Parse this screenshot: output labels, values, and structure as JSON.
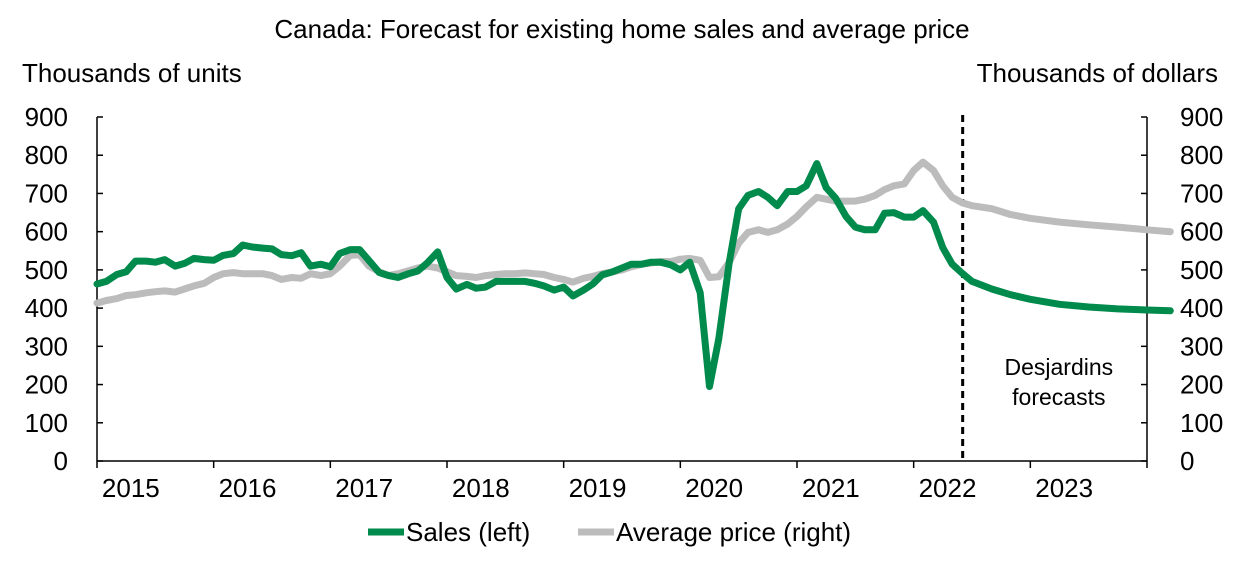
{
  "chart_data": {
    "type": "line",
    "title": "Canada: Forecast for existing home sales and average price",
    "ylabel_left": "Thousands of units",
    "ylabel_right": "Thousands of dollars",
    "yaxis_left": {
      "min": 0,
      "max": 900,
      "ticks": [
        0,
        100,
        200,
        300,
        400,
        500,
        600,
        700,
        800,
        900
      ]
    },
    "yaxis_right": {
      "min": 0,
      "max": 900,
      "ticks": [
        0,
        100,
        200,
        300,
        400,
        500,
        600,
        700,
        800,
        900
      ]
    },
    "xaxis": {
      "min": 2015,
      "max": 2024,
      "ticks": [
        2015,
        2016,
        2017,
        2018,
        2019,
        2020,
        2021,
        2022,
        2023
      ]
    },
    "forecast_start": 2022.42,
    "annotation": [
      "Desjardins",
      "forecasts"
    ],
    "series": [
      {
        "name": "Sales (left)",
        "axis": "left",
        "color": "#008a4c",
        "points": [
          [
            2015.0,
            463
          ],
          [
            2015.08,
            470
          ],
          [
            2015.17,
            488
          ],
          [
            2015.25,
            495
          ],
          [
            2015.33,
            523
          ],
          [
            2015.42,
            523
          ],
          [
            2015.5,
            520
          ],
          [
            2015.58,
            527
          ],
          [
            2015.67,
            510
          ],
          [
            2015.75,
            517
          ],
          [
            2015.83,
            530
          ],
          [
            2015.92,
            527
          ],
          [
            2016.0,
            525
          ],
          [
            2016.08,
            538
          ],
          [
            2016.17,
            543
          ],
          [
            2016.25,
            565
          ],
          [
            2016.33,
            560
          ],
          [
            2016.42,
            557
          ],
          [
            2016.5,
            555
          ],
          [
            2016.58,
            540
          ],
          [
            2016.67,
            537
          ],
          [
            2016.75,
            545
          ],
          [
            2016.83,
            510
          ],
          [
            2016.92,
            515
          ],
          [
            2017.0,
            508
          ],
          [
            2017.08,
            543
          ],
          [
            2017.17,
            553
          ],
          [
            2017.25,
            553
          ],
          [
            2017.33,
            525
          ],
          [
            2017.42,
            493
          ],
          [
            2017.5,
            485
          ],
          [
            2017.58,
            480
          ],
          [
            2017.67,
            490
          ],
          [
            2017.75,
            497
          ],
          [
            2017.83,
            518
          ],
          [
            2017.92,
            547
          ],
          [
            2018.0,
            480
          ],
          [
            2018.08,
            450
          ],
          [
            2018.17,
            462
          ],
          [
            2018.25,
            452
          ],
          [
            2018.33,
            455
          ],
          [
            2018.42,
            470
          ],
          [
            2018.5,
            470
          ],
          [
            2018.58,
            470
          ],
          [
            2018.67,
            470
          ],
          [
            2018.75,
            465
          ],
          [
            2018.83,
            458
          ],
          [
            2018.92,
            447
          ],
          [
            2019.0,
            455
          ],
          [
            2019.08,
            432
          ],
          [
            2019.17,
            447
          ],
          [
            2019.25,
            463
          ],
          [
            2019.33,
            487
          ],
          [
            2019.42,
            495
          ],
          [
            2019.5,
            505
          ],
          [
            2019.58,
            515
          ],
          [
            2019.67,
            515
          ],
          [
            2019.75,
            520
          ],
          [
            2019.83,
            520
          ],
          [
            2019.92,
            513
          ],
          [
            2020.0,
            500
          ],
          [
            2020.08,
            520
          ],
          [
            2020.17,
            440
          ],
          [
            2020.25,
            195
          ],
          [
            2020.33,
            320
          ],
          [
            2020.42,
            520
          ],
          [
            2020.5,
            660
          ],
          [
            2020.58,
            695
          ],
          [
            2020.67,
            705
          ],
          [
            2020.75,
            690
          ],
          [
            2020.83,
            668
          ],
          [
            2020.92,
            705
          ],
          [
            2021.0,
            705
          ],
          [
            2021.08,
            720
          ],
          [
            2021.17,
            778
          ],
          [
            2021.25,
            715
          ],
          [
            2021.33,
            688
          ],
          [
            2021.42,
            640
          ],
          [
            2021.5,
            612
          ],
          [
            2021.58,
            605
          ],
          [
            2021.67,
            605
          ],
          [
            2021.75,
            648
          ],
          [
            2021.83,
            650
          ],
          [
            2021.92,
            638
          ],
          [
            2022.0,
            638
          ],
          [
            2022.08,
            655
          ],
          [
            2022.17,
            625
          ],
          [
            2022.25,
            558
          ],
          [
            2022.33,
            515
          ],
          [
            2022.42,
            490
          ],
          [
            2022.5,
            470
          ],
          [
            2022.67,
            450
          ],
          [
            2022.83,
            435
          ],
          [
            2023.0,
            423
          ],
          [
            2023.25,
            410
          ],
          [
            2023.5,
            403
          ],
          [
            2023.75,
            398
          ],
          [
            2024.0,
            395
          ],
          [
            2024.2,
            393
          ]
        ]
      },
      {
        "name": "Average price (right)",
        "axis": "right",
        "color": "#bcbcbc",
        "points": [
          [
            2015.0,
            413
          ],
          [
            2015.08,
            420
          ],
          [
            2015.17,
            425
          ],
          [
            2015.25,
            433
          ],
          [
            2015.33,
            435
          ],
          [
            2015.42,
            440
          ],
          [
            2015.5,
            443
          ],
          [
            2015.58,
            445
          ],
          [
            2015.67,
            442
          ],
          [
            2015.75,
            450
          ],
          [
            2015.83,
            458
          ],
          [
            2015.92,
            465
          ],
          [
            2016.0,
            480
          ],
          [
            2016.08,
            490
          ],
          [
            2016.17,
            493
          ],
          [
            2016.25,
            490
          ],
          [
            2016.33,
            490
          ],
          [
            2016.42,
            490
          ],
          [
            2016.5,
            485
          ],
          [
            2016.58,
            475
          ],
          [
            2016.67,
            480
          ],
          [
            2016.75,
            478
          ],
          [
            2016.83,
            490
          ],
          [
            2016.92,
            485
          ],
          [
            2017.0,
            490
          ],
          [
            2017.08,
            510
          ],
          [
            2017.17,
            538
          ],
          [
            2017.25,
            540
          ],
          [
            2017.33,
            510
          ],
          [
            2017.42,
            495
          ],
          [
            2017.5,
            485
          ],
          [
            2017.58,
            490
          ],
          [
            2017.67,
            498
          ],
          [
            2017.75,
            505
          ],
          [
            2017.83,
            510
          ],
          [
            2017.92,
            505
          ],
          [
            2018.0,
            495
          ],
          [
            2018.08,
            485
          ],
          [
            2018.17,
            483
          ],
          [
            2018.25,
            480
          ],
          [
            2018.33,
            485
          ],
          [
            2018.42,
            488
          ],
          [
            2018.5,
            490
          ],
          [
            2018.58,
            490
          ],
          [
            2018.67,
            492
          ],
          [
            2018.75,
            490
          ],
          [
            2018.83,
            488
          ],
          [
            2018.92,
            480
          ],
          [
            2019.0,
            475
          ],
          [
            2019.08,
            468
          ],
          [
            2019.17,
            478
          ],
          [
            2019.25,
            483
          ],
          [
            2019.33,
            490
          ],
          [
            2019.42,
            495
          ],
          [
            2019.5,
            500
          ],
          [
            2019.58,
            508
          ],
          [
            2019.67,
            515
          ],
          [
            2019.75,
            518
          ],
          [
            2019.83,
            522
          ],
          [
            2019.92,
            522
          ],
          [
            2020.0,
            528
          ],
          [
            2020.08,
            530
          ],
          [
            2020.17,
            525
          ],
          [
            2020.25,
            480
          ],
          [
            2020.33,
            482
          ],
          [
            2020.42,
            520
          ],
          [
            2020.5,
            570
          ],
          [
            2020.58,
            598
          ],
          [
            2020.67,
            605
          ],
          [
            2020.75,
            598
          ],
          [
            2020.83,
            605
          ],
          [
            2020.92,
            620
          ],
          [
            2021.0,
            640
          ],
          [
            2021.08,
            665
          ],
          [
            2021.17,
            690
          ],
          [
            2021.25,
            685
          ],
          [
            2021.33,
            680
          ],
          [
            2021.42,
            680
          ],
          [
            2021.5,
            680
          ],
          [
            2021.58,
            685
          ],
          [
            2021.67,
            695
          ],
          [
            2021.75,
            710
          ],
          [
            2021.83,
            720
          ],
          [
            2021.92,
            725
          ],
          [
            2022.0,
            760
          ],
          [
            2022.08,
            782
          ],
          [
            2022.17,
            760
          ],
          [
            2022.25,
            720
          ],
          [
            2022.33,
            690
          ],
          [
            2022.42,
            675
          ],
          [
            2022.5,
            668
          ],
          [
            2022.67,
            660
          ],
          [
            2022.83,
            645
          ],
          [
            2023.0,
            635
          ],
          [
            2023.25,
            625
          ],
          [
            2023.5,
            618
          ],
          [
            2023.75,
            612
          ],
          [
            2024.0,
            605
          ],
          [
            2024.2,
            600
          ]
        ]
      }
    ]
  }
}
